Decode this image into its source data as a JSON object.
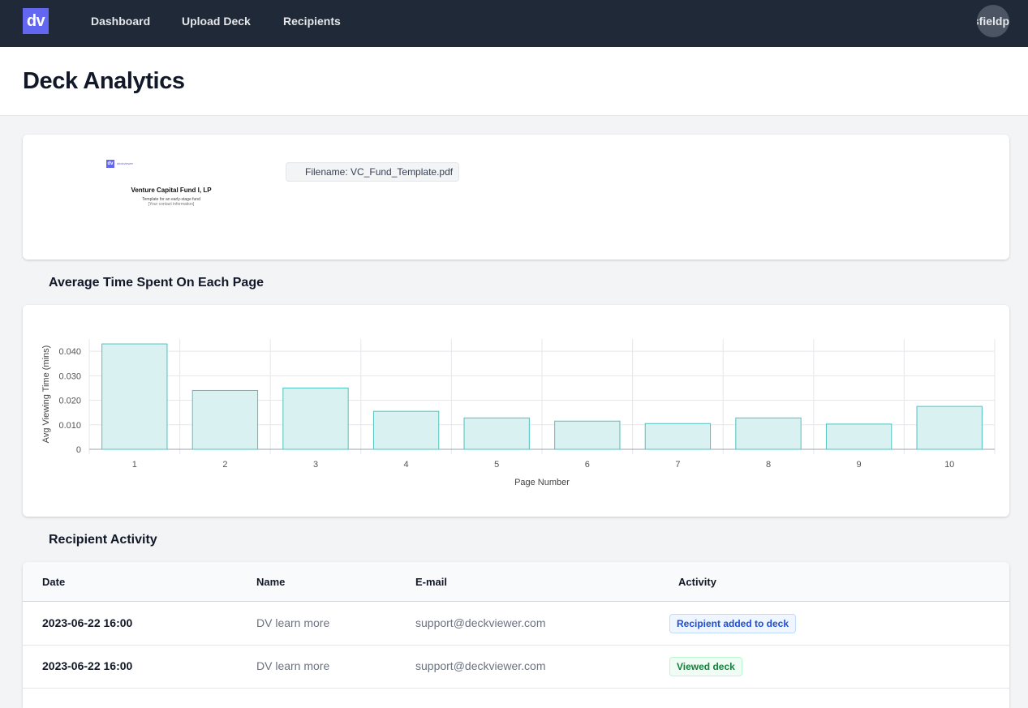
{
  "nav": {
    "logo": "dv",
    "links": [
      "Dashboard",
      "Upload Deck",
      "Recipients"
    ],
    "user": "sfieldp"
  },
  "page": {
    "title": "Deck Analytics"
  },
  "deck": {
    "thumbnail": {
      "logo": "dv",
      "brand": "deckviewer",
      "title": "Venture Capital Fund I, LP",
      "subtitle": "Template for an early-stage fund",
      "contact": "[Your contact information]"
    },
    "filename": "Filename: VC_Fund_Template.pdf"
  },
  "chart_section": {
    "title": "Average Time Spent On Each Page"
  },
  "chart_data": {
    "type": "bar",
    "title": "Average Time Spent On Each Page",
    "xlabel": "Page Number",
    "ylabel": "Avg Viewing Time (mins)",
    "categories": [
      "1",
      "2",
      "3",
      "4",
      "5",
      "6",
      "7",
      "8",
      "9",
      "10"
    ],
    "values": [
      0.043,
      0.024,
      0.025,
      0.0155,
      0.0128,
      0.0115,
      0.0105,
      0.0128,
      0.0103,
      0.0175
    ],
    "ylim": [
      0,
      0.045
    ],
    "yticks": [
      0,
      0.01,
      0.02,
      0.03,
      0.04
    ],
    "ytick_labels": [
      "0",
      "0.010",
      "0.020",
      "0.030",
      "0.040"
    ],
    "grid": true,
    "colors": {
      "fill": "#d9f1f1",
      "stroke": "#4fc3c0",
      "grid": "#e5e7eb"
    }
  },
  "activity": {
    "title": "Recipient Activity",
    "columns": [
      "Date",
      "Name",
      "E-mail",
      "Activity"
    ],
    "rows": [
      {
        "date": "2023-06-22 16:00",
        "name": "DV learn more",
        "email": "support@deckviewer.com",
        "activity": "Recipient added to deck",
        "tone": "blue"
      },
      {
        "date": "2023-06-22 16:00",
        "name": "DV learn more",
        "email": "support@deckviewer.com",
        "activity": "Viewed deck",
        "tone": "green"
      }
    ]
  }
}
